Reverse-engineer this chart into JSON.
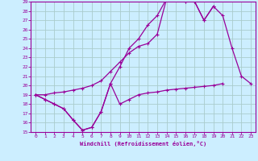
{
  "background_color": "#cceeff",
  "grid_color": "#aacccc",
  "line_color": "#990099",
  "xlim": [
    -0.5,
    23.5
  ],
  "ylim": [
    15,
    29
  ],
  "xticks": [
    0,
    1,
    2,
    3,
    4,
    5,
    6,
    7,
    8,
    9,
    10,
    11,
    12,
    13,
    14,
    15,
    16,
    17,
    18,
    19,
    20,
    21,
    22,
    23
  ],
  "yticks": [
    15,
    16,
    17,
    18,
    19,
    20,
    21,
    22,
    23,
    24,
    25,
    26,
    27,
    28,
    29
  ],
  "xlabel": "Windchill (Refroidissement éolien,°C)",
  "tick_color": "#990099",
  "s1_x": [
    0,
    1,
    2,
    3,
    4,
    5,
    6,
    7,
    8,
    9,
    10,
    11,
    12,
    13,
    14,
    15,
    16,
    17,
    18,
    19,
    20
  ],
  "s1_y": [
    19.0,
    18.5,
    18.0,
    17.5,
    16.3,
    15.2,
    15.5,
    17.2,
    20.2,
    18.0,
    18.5,
    19.0,
    19.2,
    19.3,
    19.5,
    19.6,
    19.7,
    19.8,
    19.9,
    20.0,
    20.2
  ],
  "s2_x": [
    0,
    1,
    2,
    3,
    4,
    5,
    6,
    7,
    8,
    9,
    10,
    11,
    12,
    13,
    14,
    15,
    16,
    17,
    18,
    19
  ],
  "s2_y": [
    19.0,
    18.5,
    18.0,
    17.5,
    16.3,
    15.2,
    15.5,
    17.2,
    20.2,
    22.0,
    24.0,
    25.0,
    26.5,
    27.5,
    29.3,
    29.3,
    29.0,
    29.0,
    27.0,
    28.5
  ],
  "s3_x": [
    0,
    1,
    2,
    3,
    4,
    5,
    6,
    7,
    8,
    9,
    10,
    11,
    12,
    13,
    14,
    15,
    16,
    17,
    18,
    19,
    20,
    21,
    22,
    23
  ],
  "s3_y": [
    19.0,
    19.0,
    19.2,
    19.3,
    19.5,
    19.7,
    20.0,
    20.5,
    21.5,
    22.5,
    23.5,
    24.2,
    24.5,
    25.5,
    29.3,
    29.3,
    29.0,
    29.0,
    27.0,
    28.5,
    27.5,
    24.0,
    21.0,
    20.2
  ]
}
